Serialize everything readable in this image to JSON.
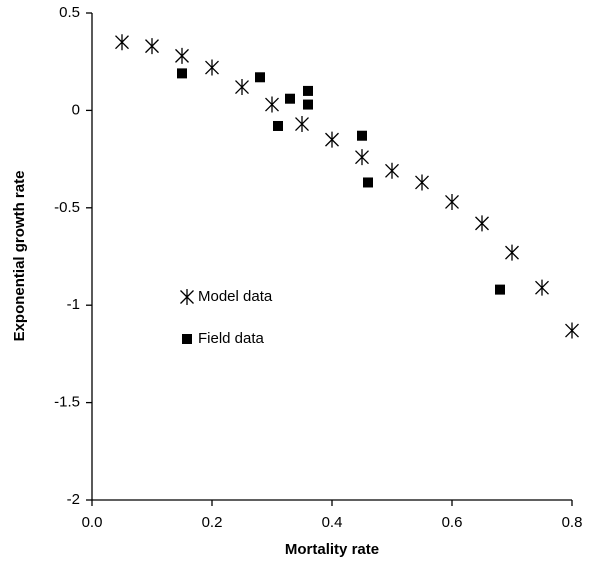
{
  "chart_data": {
    "type": "scatter",
    "x_label": "Mortality rate",
    "y_label": "Exponential growth rate",
    "xlim": [
      0,
      0.8
    ],
    "xticks": [
      {
        "value": 0,
        "label": "0.0"
      },
      0.2,
      0.4,
      0.6,
      0.8
    ],
    "ylim": [
      -2,
      0.5
    ],
    "yticks": [
      0.5,
      0,
      -0.5,
      -1,
      -1.5,
      -2
    ],
    "grid": false,
    "legend": "center left",
    "series": [
      {
        "name": "Model data",
        "marker": "asterisk",
        "color": "#000000",
        "x": [
          0.05,
          0.1,
          0.15,
          0.2,
          0.25,
          0.3,
          0.35,
          0.4,
          0.45,
          0.5,
          0.55,
          0.6,
          0.65,
          0.7,
          0.75,
          0.8
        ],
        "y": [
          0.35,
          0.33,
          0.28,
          0.22,
          0.12,
          0.03,
          -0.07,
          -0.15,
          -0.24,
          -0.31,
          -0.37,
          -0.47,
          -0.58,
          -0.73,
          -0.91,
          -1.13
        ]
      },
      {
        "name": "Field data",
        "marker": "square",
        "color": "#000000",
        "x": [
          0.15,
          0.28,
          0.33,
          0.36,
          0.36,
          0.31,
          0.45,
          0.46,
          0.68
        ],
        "y": [
          0.19,
          0.17,
          0.06,
          0.1,
          0.03,
          -0.08,
          -0.13,
          -0.37,
          -0.92
        ]
      }
    ]
  }
}
